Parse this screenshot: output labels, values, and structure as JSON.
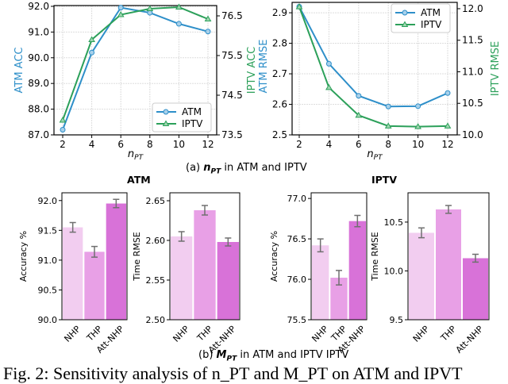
{
  "captions": {
    "a_prefix": "(a) ",
    "a_var": "n",
    "a_sub": "PT",
    "a_suffix": " in ATM and IPTV",
    "b_prefix": "(b) ",
    "b_var": "M",
    "b_sub": "PT",
    "b_suffix": " in ATM and IPTV IPTV",
    "figure": "Fig. 2: Sensitivity analysis of n_PT and M_PT on ATM and IPVT"
  },
  "colors": {
    "atm": "#2e8fc9",
    "iptv": "#2ca05a",
    "nhp": "#f2cdf0",
    "thp": "#e8a0e6",
    "att_nhp": "#d872d8",
    "errorbar": "#707070"
  },
  "chart_data": [
    {
      "type": "line",
      "xlabel": "n_PT",
      "ylabel": "ATM ACC",
      "y2label": "IPTV ACC",
      "x": [
        2,
        4,
        6,
        8,
        10,
        12
      ],
      "ylim": [
        87.0,
        92.03
      ],
      "y2lim": [
        73.5,
        76.76
      ],
      "yticks": [
        "87.0",
        "88.0",
        "89.0",
        "90.0",
        "91.0",
        "92.0"
      ],
      "y2ticks": [
        "73.5",
        "74.5",
        "75.5",
        "76.5"
      ],
      "grid": true,
      "legend": "bottom-right",
      "series": [
        {
          "name": "ATM",
          "axis": "left",
          "marker": "circle",
          "values": [
            87.2,
            90.2,
            91.95,
            91.75,
            91.32,
            91.02
          ]
        },
        {
          "name": "IPTV",
          "axis": "right",
          "marker": "triangle",
          "values": [
            73.87,
            75.9,
            76.53,
            76.68,
            76.72,
            76.42
          ]
        }
      ]
    },
    {
      "type": "line",
      "xlabel": "n_PT",
      "ylabel": "ATM RMSE",
      "y2label": "IPTV RMSE",
      "x": [
        2,
        4,
        6,
        8,
        10,
        12
      ],
      "ylim": [
        2.5,
        2.934
      ],
      "y2lim": [
        10.0,
        12.1
      ],
      "yticks": [
        "2.5",
        "2.6",
        "2.7",
        "2.8",
        "2.9"
      ],
      "y2ticks": [
        "10.0",
        "10.5",
        "11.0",
        "11.5",
        "12.0"
      ],
      "grid": true,
      "legend": "top-right",
      "series": [
        {
          "name": "ATM",
          "axis": "left",
          "marker": "circle",
          "values": [
            2.92,
            2.733,
            2.628,
            2.593,
            2.594,
            2.637
          ]
        },
        {
          "name": "IPTV",
          "axis": "right",
          "marker": "triangle",
          "values": [
            12.03,
            10.75,
            10.31,
            10.14,
            10.13,
            10.14
          ]
        }
      ]
    },
    {
      "type": "bar",
      "group_title": "ATM",
      "ylabel": "Accuracy %",
      "categories": [
        "NHP",
        "THP",
        "Att-NHP"
      ],
      "values": [
        91.55,
        91.14,
        91.95
      ],
      "errors": [
        0.08,
        0.09,
        0.07
      ],
      "ylim": [
        90.0,
        92.13
      ],
      "yticks": [
        "90.0",
        "90.5",
        "91.0",
        "91.5",
        "92.0"
      ]
    },
    {
      "type": "bar",
      "ylabel": "Time RMSE",
      "categories": [
        "NHP",
        "THP",
        "Att-NHP"
      ],
      "values": [
        2.605,
        2.638,
        2.598
      ],
      "errors": [
        0.006,
        0.006,
        0.005
      ],
      "ylim": [
        2.5,
        2.66
      ],
      "yticks": [
        "2.50",
        "2.55",
        "2.60",
        "2.65"
      ]
    },
    {
      "type": "bar",
      "group_title": "IPTV",
      "ylabel": "Accuracy %",
      "categories": [
        "NHP",
        "THP",
        "Att-NHP"
      ],
      "values": [
        76.42,
        76.02,
        76.72
      ],
      "errors": [
        0.08,
        0.09,
        0.07
      ],
      "ylim": [
        75.5,
        77.07
      ],
      "yticks": [
        "75.5",
        "76.0",
        "76.5",
        "77.0"
      ]
    },
    {
      "type": "bar",
      "ylabel": "Time RMSE",
      "categories": [
        "NHP",
        "THP",
        "Att-NHP"
      ],
      "values": [
        10.39,
        10.63,
        10.13
      ],
      "errors": [
        0.05,
        0.04,
        0.04
      ],
      "ylim": [
        9.5,
        10.8
      ],
      "yticks": [
        "9.5",
        "10.0",
        "10.5"
      ]
    }
  ]
}
